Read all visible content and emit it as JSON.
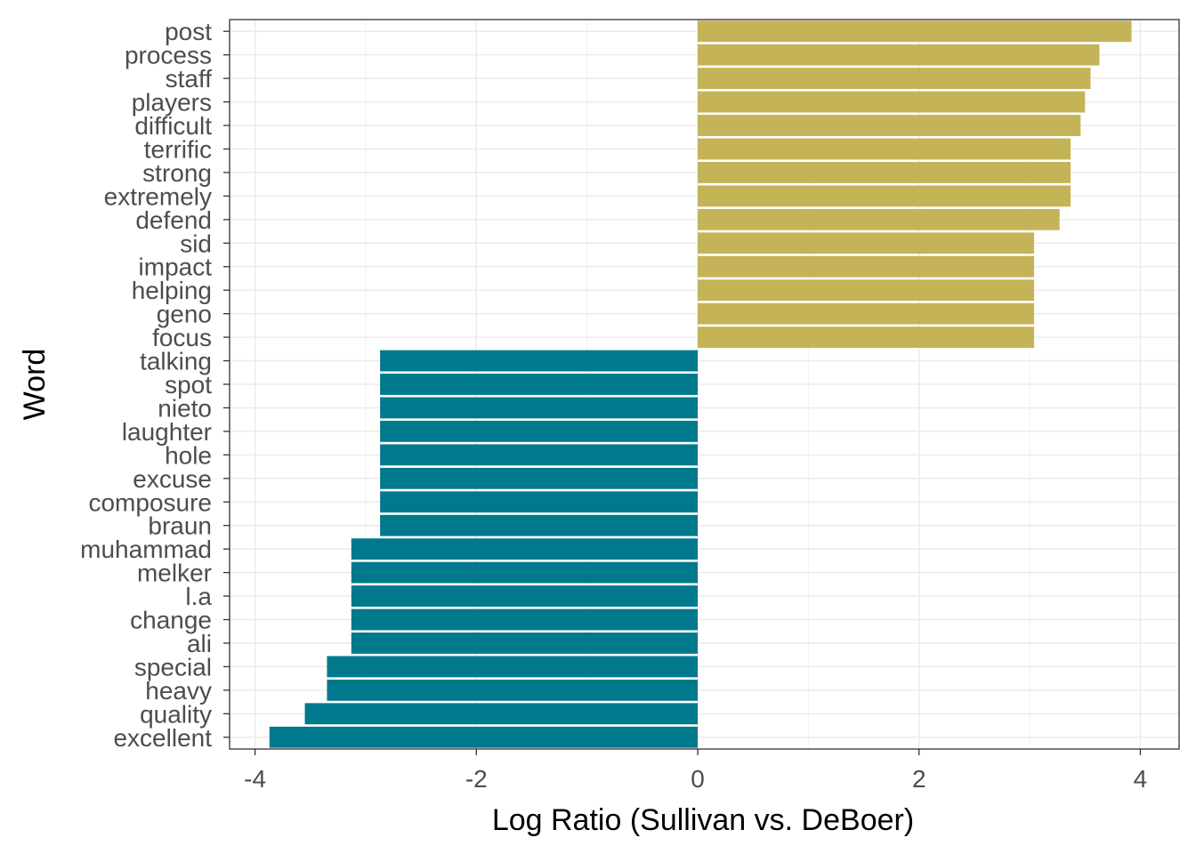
{
  "chart_data": {
    "type": "bar",
    "orientation": "horizontal",
    "xlabel": "Log Ratio (Sullivan vs. DeBoer)",
    "ylabel": "Word",
    "xlim": [
      -4.23,
      4.35
    ],
    "x_ticks": [
      -4,
      -2,
      0,
      2,
      4
    ],
    "x_tick_labels": [
      "-4",
      "-2",
      "0",
      "2",
      "4"
    ],
    "grid": true,
    "legend": "none",
    "colors": {
      "positive": "#C5B358",
      "negative": "#00798C"
    },
    "categories": [
      "post",
      "process",
      "staff",
      "players",
      "difficult",
      "terrific",
      "strong",
      "extremely",
      "defend",
      "sid",
      "impact",
      "helping",
      "geno",
      "focus",
      "talking",
      "spot",
      "nieto",
      "laughter",
      "hole",
      "excuse",
      "composure",
      "braun",
      "muhammad",
      "melker",
      "l.a",
      "change",
      "ali",
      "special",
      "heavy",
      "quality",
      "excellent"
    ],
    "values": [
      3.92,
      3.63,
      3.55,
      3.5,
      3.46,
      3.37,
      3.37,
      3.37,
      3.27,
      3.04,
      3.04,
      3.04,
      3.04,
      3.04,
      -2.87,
      -2.87,
      -2.87,
      -2.87,
      -2.87,
      -2.87,
      -2.87,
      -2.87,
      -3.13,
      -3.13,
      -3.13,
      -3.13,
      -3.13,
      -3.35,
      -3.35,
      -3.55,
      -3.87
    ]
  }
}
